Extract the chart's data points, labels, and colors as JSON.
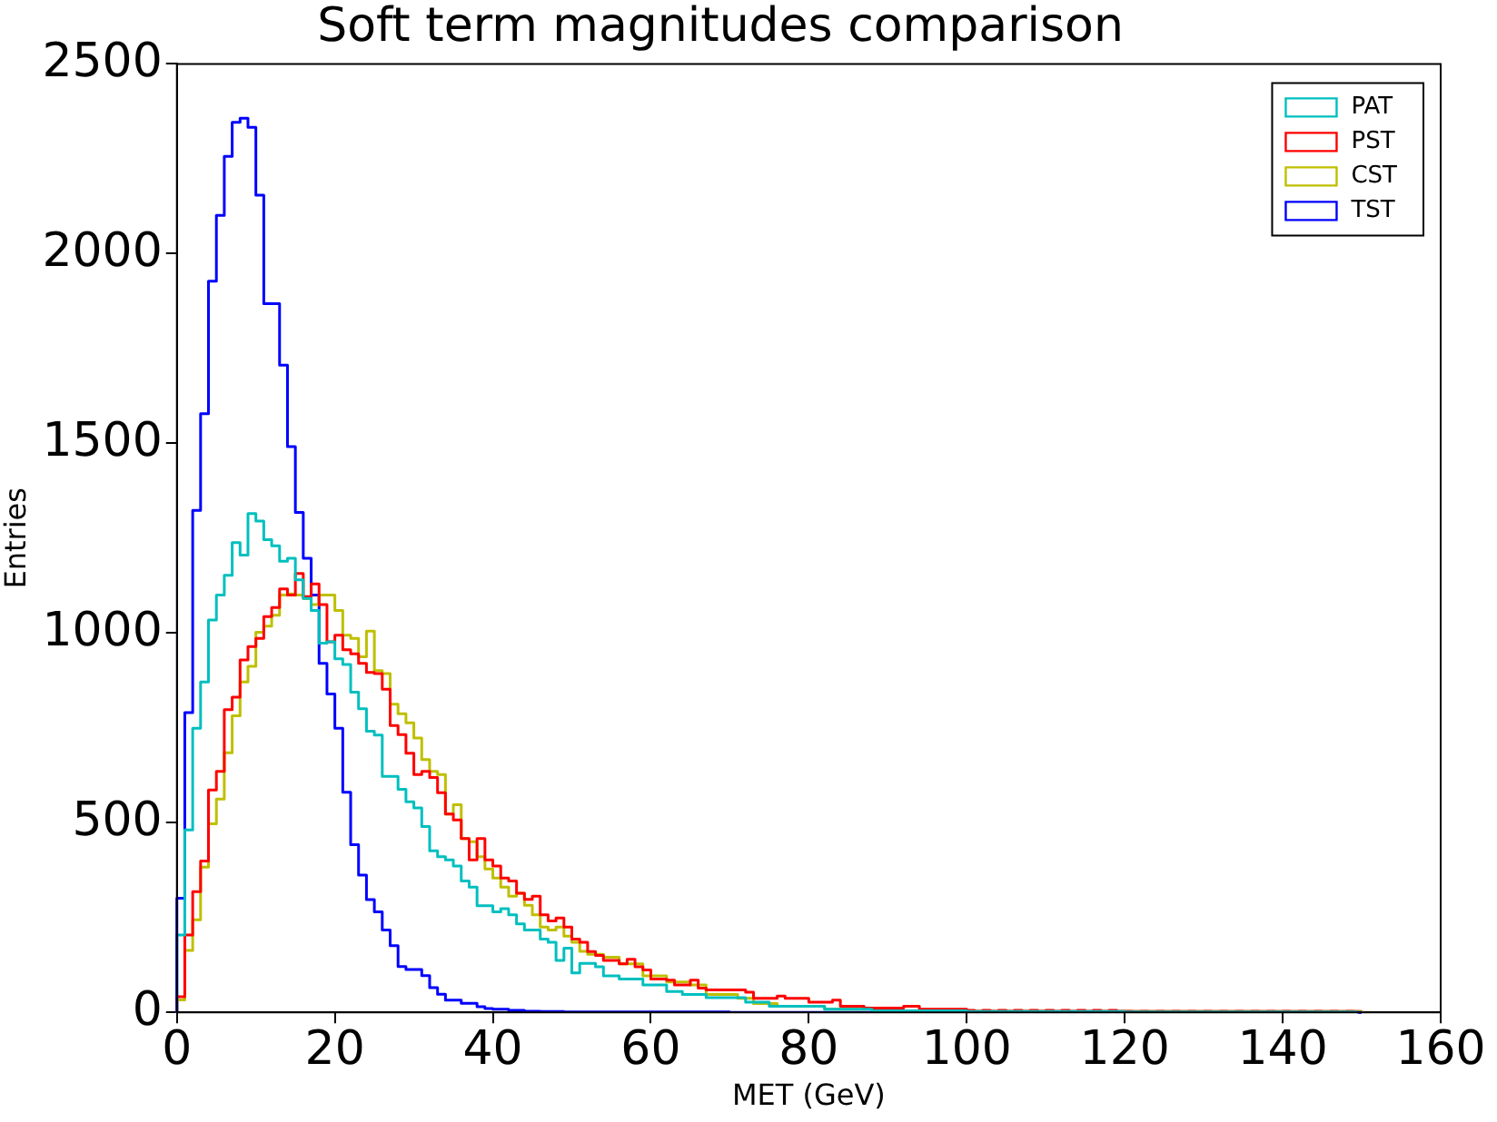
{
  "chart_data": {
    "type": "histogram",
    "title": "Soft term magnitudes comparison",
    "xlabel": "MET (GeV)",
    "ylabel": "Entries",
    "bins": [
      0,
      1,
      2,
      3,
      4,
      5,
      6,
      7,
      8,
      9,
      10,
      11,
      12,
      13,
      14,
      15,
      16,
      17,
      18,
      19,
      20,
      21,
      22,
      23,
      24,
      25,
      26,
      27,
      28,
      29,
      30,
      31,
      32,
      33,
      34,
      35,
      36,
      37,
      38,
      39,
      40,
      41,
      42,
      43,
      44,
      45,
      46,
      47,
      48,
      49,
      50,
      51,
      52,
      53,
      54,
      55,
      56,
      57,
      58,
      59,
      60,
      61,
      62,
      63,
      64,
      65,
      66,
      67,
      68,
      69,
      70,
      71,
      72,
      73,
      74,
      75,
      76,
      77,
      78,
      79,
      80,
      81,
      82,
      83,
      84,
      85,
      86,
      87,
      88,
      89,
      90,
      91,
      92,
      93,
      94,
      95,
      96,
      97,
      98,
      99,
      100,
      101,
      102,
      103,
      104,
      105,
      106,
      107,
      108,
      109,
      110,
      111,
      112,
      113,
      114,
      115,
      116,
      117,
      118,
      119,
      120,
      121,
      122,
      123,
      124,
      125,
      126,
      127,
      128,
      129,
      130,
      131,
      132,
      133,
      134,
      135,
      136,
      137,
      138,
      139,
      140,
      141,
      142,
      143,
      144,
      145,
      146,
      147,
      148,
      149,
      150
    ],
    "series": [
      {
        "name": "PAT",
        "color": "#00bfbf",
        "values": [
          204,
          481,
          749,
          871,
          1034,
          1100,
          1152,
          1238,
          1205,
          1315,
          1295,
          1246,
          1230,
          1189,
          1197,
          1140,
          1091,
          1059,
          973,
          977,
          932,
          917,
          844,
          800,
          741,
          731,
          622,
          622,
          588,
          555,
          539,
          490,
          426,
          410,
          402,
          386,
          346,
          330,
          281,
          281,
          265,
          273,
          257,
          233,
          217,
          217,
          193,
          185,
          137,
          169,
          104,
          129,
          129,
          120,
          96,
          96,
          88,
          88,
          88,
          72,
          72,
          72,
          55,
          55,
          47,
          47,
          47,
          39,
          39,
          39,
          39,
          39,
          27,
          27,
          27,
          16,
          16,
          16,
          16,
          16,
          16,
          16,
          8,
          8,
          8,
          8,
          8,
          8,
          4,
          4,
          4,
          4,
          4,
          4,
          4,
          4,
          4,
          4,
          4,
          4,
          2,
          2,
          2,
          2,
          2,
          2,
          2,
          2,
          2,
          2,
          2,
          2,
          2,
          2,
          2,
          2,
          2,
          2,
          2,
          2,
          1,
          1,
          1,
          1,
          1,
          1,
          1,
          1,
          1,
          1,
          1,
          1,
          1,
          1,
          1,
          1,
          1,
          1,
          1,
          1,
          1,
          1,
          1,
          1,
          1,
          1,
          1,
          1,
          1,
          1
        ]
      },
      {
        "name": "PST",
        "color": "#ff0000",
        "values": [
          41,
          204,
          318,
          399,
          586,
          635,
          798,
          831,
          929,
          964,
          986,
          1043,
          1067,
          1116,
          1100,
          1157,
          1096,
          1129,
          1075,
          977,
          994,
          956,
          945,
          920,
          896,
          893,
          852,
          756,
          732,
          683,
          627,
          635,
          619,
          579,
          523,
          507,
          458,
          402,
          458,
          402,
          386,
          354,
          346,
          314,
          298,
          306,
          257,
          241,
          249,
          225,
          193,
          185,
          160,
          150,
          137,
          137,
          128,
          140,
          120,
          112,
          88,
          88,
          85,
          72,
          72,
          85,
          64,
          59,
          59,
          59,
          59,
          59,
          53,
          37,
          37,
          37,
          43,
          37,
          37,
          37,
          27,
          27,
          27,
          32,
          16,
          16,
          16,
          11,
          11,
          11,
          11,
          11,
          16,
          16,
          8,
          8,
          8,
          8,
          8,
          8,
          5,
          3,
          5,
          3,
          5,
          3,
          5,
          3,
          5,
          3,
          5,
          3,
          5,
          3,
          5,
          3,
          5,
          3,
          5,
          3,
          3,
          2,
          3,
          2,
          3,
          2,
          3,
          2,
          3,
          2,
          3,
          2,
          3,
          2,
          3,
          2,
          3,
          2,
          3,
          2,
          3,
          2,
          3,
          2,
          3,
          2,
          3,
          2,
          3,
          2
        ]
      },
      {
        "name": "CST",
        "color": "#bfbf00",
        "values": [
          33,
          163,
          244,
          383,
          497,
          562,
          684,
          782,
          871,
          912,
          1002,
          1018,
          1047,
          1100,
          1103,
          1100,
          1091,
          1075,
          1100,
          1100,
          1059,
          994,
          986,
          937,
          1005,
          901,
          893,
          812,
          787,
          763,
          723,
          666,
          635,
          627,
          523,
          547,
          458,
          450,
          410,
          378,
          354,
          330,
          306,
          314,
          282,
          257,
          225,
          217,
          225,
          201,
          185,
          161,
          153,
          153,
          145,
          145,
          128,
          128,
          128,
          96,
          96,
          96,
          80,
          80,
          80,
          72,
          72,
          47,
          47,
          47,
          47,
          37,
          37,
          23,
          23,
          23,
          16,
          16,
          16,
          16,
          16,
          16,
          8,
          8,
          8,
          8,
          8,
          8,
          8,
          3,
          3,
          3,
          3,
          3,
          3,
          3,
          3,
          3,
          3,
          3,
          3,
          3,
          3,
          3,
          3,
          3,
          3,
          3,
          3,
          3,
          2,
          2,
          2,
          2,
          2,
          2,
          2,
          2,
          2,
          2,
          2,
          2,
          2,
          2,
          2,
          2,
          2,
          2,
          2,
          2,
          2,
          2,
          2,
          2,
          2,
          2,
          2,
          2,
          2,
          2,
          2,
          2,
          2,
          2,
          2,
          2,
          2,
          2,
          2,
          2
        ]
      },
      {
        "name": "TST",
        "color": "#0000ff",
        "values": [
          301,
          790,
          1323,
          1578,
          1927,
          2101,
          2256,
          2346,
          2357,
          2333,
          2154,
          1868,
          1868,
          1706,
          1491,
          1318,
          1197,
          1100,
          920,
          839,
          749,
          580,
          442,
          362,
          297,
          265,
          217,
          176,
          121,
          113,
          113,
          97,
          65,
          48,
          32,
          32,
          24,
          24,
          15,
          10,
          8,
          8,
          5,
          5,
          3,
          3,
          2,
          2,
          2,
          1,
          1,
          1,
          1,
          1,
          1,
          1,
          1,
          1,
          1,
          1,
          1,
          1,
          1,
          1,
          1,
          1,
          1,
          1,
          1,
          1,
          0,
          0,
          0,
          0,
          0,
          0,
          0,
          0,
          0,
          0,
          0,
          0,
          0,
          0,
          0,
          0,
          0,
          0,
          0,
          0,
          0,
          0,
          0,
          0,
          0,
          0,
          0,
          0,
          0,
          0,
          0,
          0,
          0,
          0,
          0,
          0,
          0,
          0,
          0,
          0,
          0,
          0,
          0,
          0,
          0,
          0,
          0,
          0,
          0,
          0,
          0,
          0,
          0,
          0,
          0,
          0,
          0,
          0,
          0,
          0,
          0,
          0,
          0,
          0,
          0,
          0,
          0,
          0,
          0,
          0,
          0,
          0,
          0,
          0,
          0,
          0,
          0,
          0,
          0,
          0
        ]
      }
    ],
    "xlim": [
      0,
      160
    ],
    "xticks": [
      0,
      20,
      40,
      60,
      80,
      100,
      120,
      140,
      160
    ],
    "ylim": [
      0,
      2500
    ],
    "yticks": [
      0,
      500,
      1000,
      1500,
      2000,
      2500
    ],
    "legend": "top right"
  }
}
